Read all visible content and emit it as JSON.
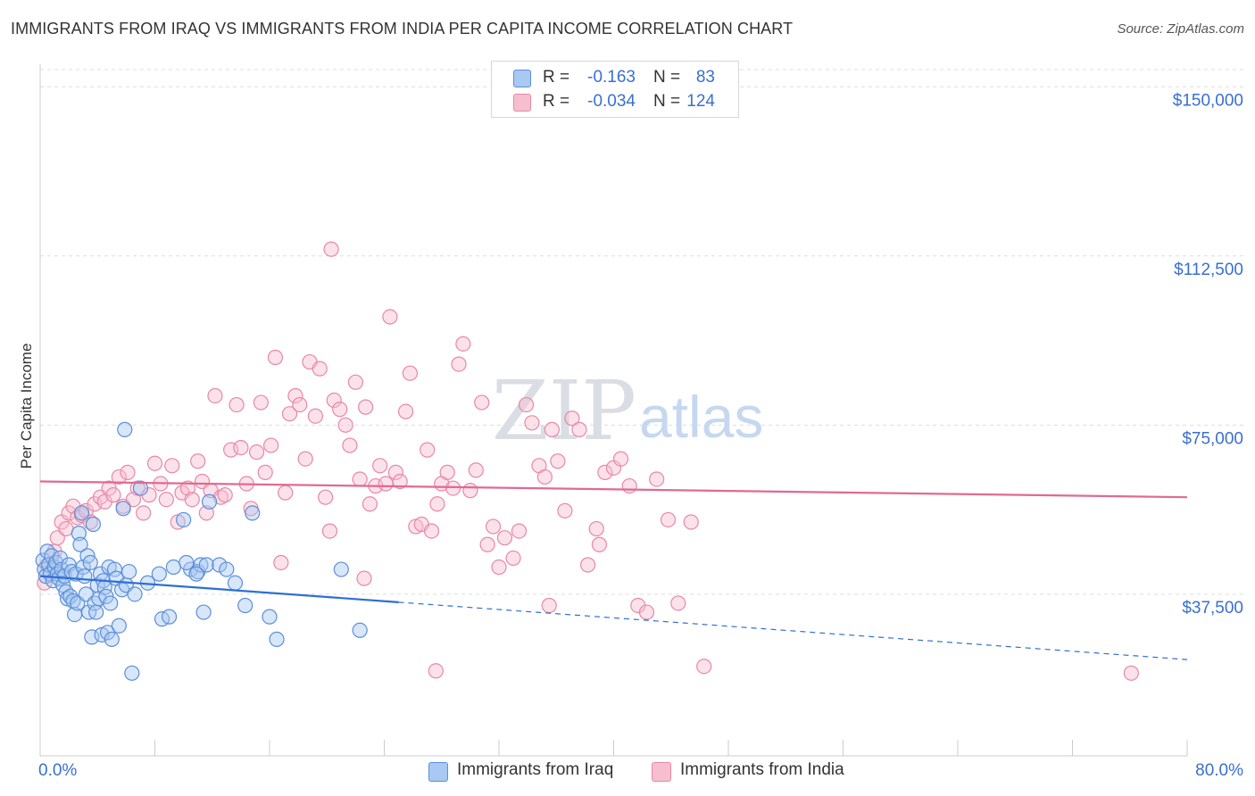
{
  "title": "IMMIGRANTS FROM IRAQ VS IMMIGRANTS FROM INDIA PER CAPITA INCOME CORRELATION CHART",
  "source": "Source: ZipAtlas.com",
  "watermark": {
    "zip": "ZIP",
    "atlas": "atlas"
  },
  "colors": {
    "iraq_fill": "#a9c8f2",
    "iraq_stroke": "#5b8fd8",
    "iraq_line": "#2e6fd4",
    "india_fill": "#f6bfd0",
    "india_stroke": "#e987a6",
    "india_line": "#e06a92",
    "axis_label": "#3a6fd0"
  },
  "legend_top": [
    {
      "r_label": "R =",
      "r_value": "-0.163",
      "n_label": "N =",
      "n_value": "83"
    },
    {
      "r_label": "R =",
      "r_value": "-0.034",
      "n_label": "N =",
      "n_value": "124"
    }
  ],
  "legend_bottom": [
    "Immigrants from Iraq",
    "Immigrants from India"
  ],
  "chart_data": {
    "type": "scatter",
    "title": "IMMIGRANTS FROM IRAQ VS IMMIGRANTS FROM INDIA PER CAPITA INCOME CORRELATION CHART",
    "xlabel": "",
    "ylabel": "Per Capita Income",
    "xlim": [
      0,
      80
    ],
    "ylim": [
      7000,
      155000
    ],
    "x_tick_labels": [
      "0.0%",
      "80.0%"
    ],
    "y_ticks": [
      37500,
      75000,
      112500,
      150000
    ],
    "y_tick_labels": [
      "$37,500",
      "$75,000",
      "$112,500",
      "$150,000"
    ],
    "grid": "horizontal dashed",
    "legend": "bottom-center",
    "series": [
      {
        "name": "Immigrants from Iraq",
        "r": -0.163,
        "n": 83,
        "trend": {
          "x": [
            0,
            80
          ],
          "y": [
            41500,
            23000
          ],
          "solid_until_x": 25
        },
        "points": [
          [
            0.2,
            45000
          ],
          [
            0.3,
            43000
          ],
          [
            0.4,
            41500
          ],
          [
            0.5,
            47000
          ],
          [
            0.6,
            44000
          ],
          [
            0.7,
            42000
          ],
          [
            0.8,
            46000
          ],
          [
            0.9,
            40500
          ],
          [
            1.0,
            43500
          ],
          [
            1.1,
            44500
          ],
          [
            1.2,
            42000
          ],
          [
            1.3,
            41000
          ],
          [
            1.4,
            45500
          ],
          [
            1.5,
            43000
          ],
          [
            1.6,
            39500
          ],
          [
            1.7,
            41500
          ],
          [
            1.8,
            38000
          ],
          [
            1.9,
            36500
          ],
          [
            2.0,
            44000
          ],
          [
            2.1,
            37000
          ],
          [
            2.2,
            42500
          ],
          [
            2.3,
            36000
          ],
          [
            2.4,
            33000
          ],
          [
            2.5,
            42000
          ],
          [
            2.6,
            35500
          ],
          [
            2.7,
            51000
          ],
          [
            2.8,
            48500
          ],
          [
            2.9,
            55500
          ],
          [
            3.0,
            43500
          ],
          [
            3.1,
            41500
          ],
          [
            3.2,
            37500
          ],
          [
            3.3,
            46000
          ],
          [
            3.4,
            33500
          ],
          [
            3.5,
            44500
          ],
          [
            3.6,
            28000
          ],
          [
            3.7,
            53000
          ],
          [
            3.8,
            35500
          ],
          [
            3.9,
            33500
          ],
          [
            4.0,
            39500
          ],
          [
            4.1,
            36500
          ],
          [
            4.2,
            42000
          ],
          [
            4.3,
            28500
          ],
          [
            4.4,
            40500
          ],
          [
            4.5,
            39000
          ],
          [
            4.6,
            37000
          ],
          [
            4.7,
            29000
          ],
          [
            4.8,
            43500
          ],
          [
            4.9,
            35500
          ],
          [
            5.0,
            27500
          ],
          [
            5.2,
            43000
          ],
          [
            5.3,
            41000
          ],
          [
            5.5,
            30500
          ],
          [
            5.7,
            38500
          ],
          [
            5.8,
            56500
          ],
          [
            5.9,
            74000
          ],
          [
            6.0,
            39500
          ],
          [
            6.2,
            42500
          ],
          [
            6.4,
            20000
          ],
          [
            6.6,
            37500
          ],
          [
            7.0,
            61000
          ],
          [
            7.5,
            40000
          ],
          [
            8.5,
            32000
          ],
          [
            9.0,
            32500
          ],
          [
            8.3,
            42000
          ],
          [
            9.3,
            43500
          ],
          [
            10.0,
            54000
          ],
          [
            10.5,
            43000
          ],
          [
            11.0,
            42500
          ],
          [
            11.2,
            44000
          ],
          [
            11.4,
            33500
          ],
          [
            11.6,
            44000
          ],
          [
            11.8,
            58000
          ],
          [
            10.2,
            44500
          ],
          [
            10.9,
            42000
          ],
          [
            12.5,
            44000
          ],
          [
            13.0,
            43000
          ],
          [
            13.6,
            40000
          ],
          [
            14.3,
            35000
          ],
          [
            14.8,
            55500
          ],
          [
            16.0,
            32500
          ],
          [
            16.5,
            27500
          ],
          [
            22.3,
            29500
          ],
          [
            21.0,
            43000
          ]
        ]
      },
      {
        "name": "Immigrants from India",
        "r": -0.034,
        "n": 124,
        "trend": {
          "x": [
            0,
            80
          ],
          "y": [
            62500,
            59000
          ]
        },
        "points": [
          [
            0.3,
            40000
          ],
          [
            0.5,
            44000
          ],
          [
            0.8,
            42500
          ],
          [
            1.0,
            47000
          ],
          [
            1.2,
            50000
          ],
          [
            1.5,
            53500
          ],
          [
            1.8,
            52000
          ],
          [
            2.0,
            55500
          ],
          [
            2.3,
            57000
          ],
          [
            2.6,
            54500
          ],
          [
            2.9,
            55000
          ],
          [
            3.2,
            56000
          ],
          [
            3.5,
            53500
          ],
          [
            3.8,
            57500
          ],
          [
            4.2,
            59000
          ],
          [
            4.5,
            58000
          ],
          [
            4.8,
            61000
          ],
          [
            5.1,
            59500
          ],
          [
            5.5,
            63500
          ],
          [
            5.8,
            57000
          ],
          [
            6.1,
            64500
          ],
          [
            6.5,
            58500
          ],
          [
            6.8,
            61000
          ],
          [
            7.2,
            55500
          ],
          [
            7.6,
            59500
          ],
          [
            8.0,
            66500
          ],
          [
            8.4,
            62000
          ],
          [
            8.8,
            58500
          ],
          [
            9.2,
            66000
          ],
          [
            9.6,
            53500
          ],
          [
            9.9,
            60000
          ],
          [
            10.3,
            61000
          ],
          [
            10.6,
            58500
          ],
          [
            11.0,
            67000
          ],
          [
            11.3,
            62500
          ],
          [
            11.6,
            55500
          ],
          [
            11.9,
            60500
          ],
          [
            12.2,
            81500
          ],
          [
            12.6,
            59000
          ],
          [
            12.9,
            59500
          ],
          [
            13.3,
            69500
          ],
          [
            13.7,
            79500
          ],
          [
            14.0,
            70000
          ],
          [
            14.4,
            62000
          ],
          [
            14.7,
            56500
          ],
          [
            15.1,
            69000
          ],
          [
            15.4,
            80000
          ],
          [
            15.7,
            64500
          ],
          [
            16.1,
            70500
          ],
          [
            16.4,
            90000
          ],
          [
            16.8,
            44500
          ],
          [
            17.1,
            60000
          ],
          [
            17.4,
            77500
          ],
          [
            17.8,
            81500
          ],
          [
            18.1,
            79500
          ],
          [
            18.5,
            67500
          ],
          [
            18.8,
            89000
          ],
          [
            19.2,
            77000
          ],
          [
            19.5,
            87500
          ],
          [
            19.9,
            59000
          ],
          [
            20.2,
            51500
          ],
          [
            20.5,
            80500
          ],
          [
            20.9,
            78500
          ],
          [
            21.3,
            75000
          ],
          [
            21.6,
            70500
          ],
          [
            22.0,
            84500
          ],
          [
            22.3,
            63000
          ],
          [
            22.7,
            79000
          ],
          [
            23.0,
            57500
          ],
          [
            23.4,
            61500
          ],
          [
            23.7,
            66000
          ],
          [
            24.1,
            62000
          ],
          [
            24.4,
            99000
          ],
          [
            24.8,
            64500
          ],
          [
            25.1,
            62500
          ],
          [
            25.5,
            78000
          ],
          [
            25.8,
            86500
          ],
          [
            26.2,
            52500
          ],
          [
            26.6,
            53000
          ],
          [
            27.0,
            69500
          ],
          [
            27.3,
            51500
          ],
          [
            27.7,
            57500
          ],
          [
            28.0,
            62000
          ],
          [
            28.4,
            64500
          ],
          [
            28.8,
            61000
          ],
          [
            29.2,
            88500
          ],
          [
            29.5,
            93000
          ],
          [
            30.0,
            60500
          ],
          [
            30.4,
            65000
          ],
          [
            30.8,
            80000
          ],
          [
            31.2,
            48500
          ],
          [
            31.6,
            52500
          ],
          [
            32.0,
            43500
          ],
          [
            32.4,
            50000
          ],
          [
            33.0,
            45500
          ],
          [
            33.4,
            51500
          ],
          [
            33.9,
            79500
          ],
          [
            34.3,
            75500
          ],
          [
            34.8,
            66000
          ],
          [
            35.2,
            63500
          ],
          [
            35.7,
            74000
          ],
          [
            36.1,
            67000
          ],
          [
            36.6,
            56000
          ],
          [
            37.1,
            76500
          ],
          [
            37.6,
            74000
          ],
          [
            38.2,
            44000
          ],
          [
            38.8,
            52000
          ],
          [
            39.4,
            64500
          ],
          [
            40.0,
            65500
          ],
          [
            40.5,
            67500
          ],
          [
            41.1,
            61500
          ],
          [
            41.7,
            35000
          ],
          [
            42.3,
            33500
          ],
          [
            43.0,
            63000
          ],
          [
            43.8,
            54000
          ],
          [
            44.5,
            35500
          ],
          [
            45.4,
            53500
          ],
          [
            46.3,
            21500
          ],
          [
            35.5,
            35000
          ],
          [
            20.3,
            114000
          ],
          [
            27.6,
            20500
          ],
          [
            76.1,
            20000
          ],
          [
            39.0,
            48500
          ],
          [
            22.6,
            41000
          ]
        ]
      }
    ]
  }
}
